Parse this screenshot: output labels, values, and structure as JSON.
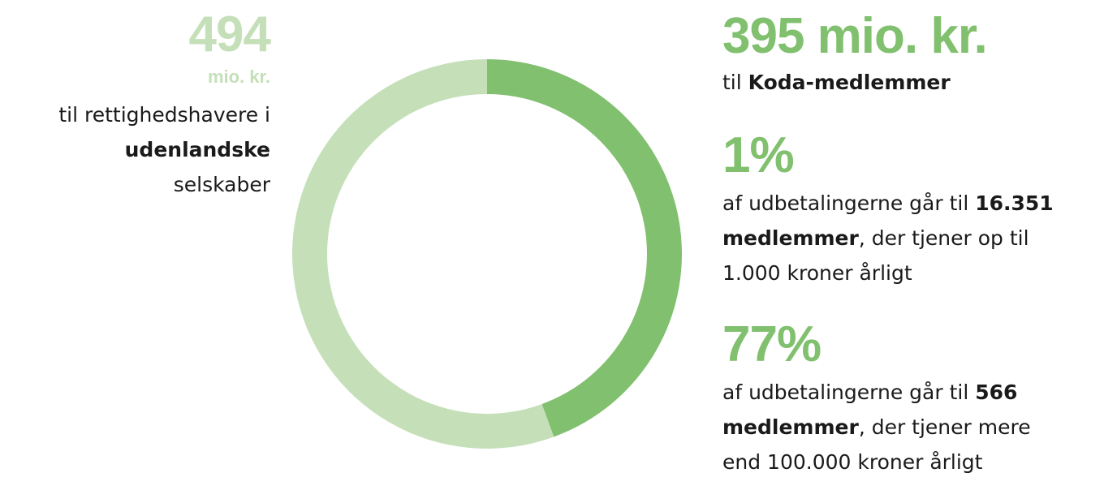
{
  "chart_data": {
    "type": "donut",
    "values": [
      395,
      494
    ],
    "value_labels": [
      "395 mio. kr.",
      "494"
    ],
    "colors": [
      "#80c06e",
      "#c5e0b9"
    ],
    "unit_label": "mio. kr.",
    "segment_notes": [
      [
        [
          {
            "text": "til "
          },
          {
            "text": "Koda-medlemmer",
            "bold": true
          }
        ]
      ],
      [
        [
          {
            "text": "til rettighedshavere i"
          }
        ],
        [
          {
            "text": "udenlandske",
            "bold": true
          }
        ],
        [
          {
            "text": "selskaber"
          }
        ]
      ]
    ],
    "facts": [
      {
        "label": "1%",
        "lines": [
          [
            {
              "text": "af udbetalingerne går til "
            },
            {
              "text": "16.351",
              "bold": true
            }
          ],
          [
            {
              "text": "medlemmer",
              "bold": true
            },
            {
              "text": ", der tjener op til"
            }
          ],
          [
            {
              "text": "1.000 kroner årligt"
            }
          ]
        ]
      },
      {
        "label": "77%",
        "lines": [
          [
            {
              "text": "af udbetalingerne går til "
            },
            {
              "text": "566",
              "bold": true
            }
          ],
          [
            {
              "text": "medlemmer",
              "bold": true
            },
            {
              "text": ", der tjener mere"
            }
          ],
          [
            {
              "text": "end 100.000 kroner årligt"
            }
          ]
        ]
      }
    ]
  }
}
